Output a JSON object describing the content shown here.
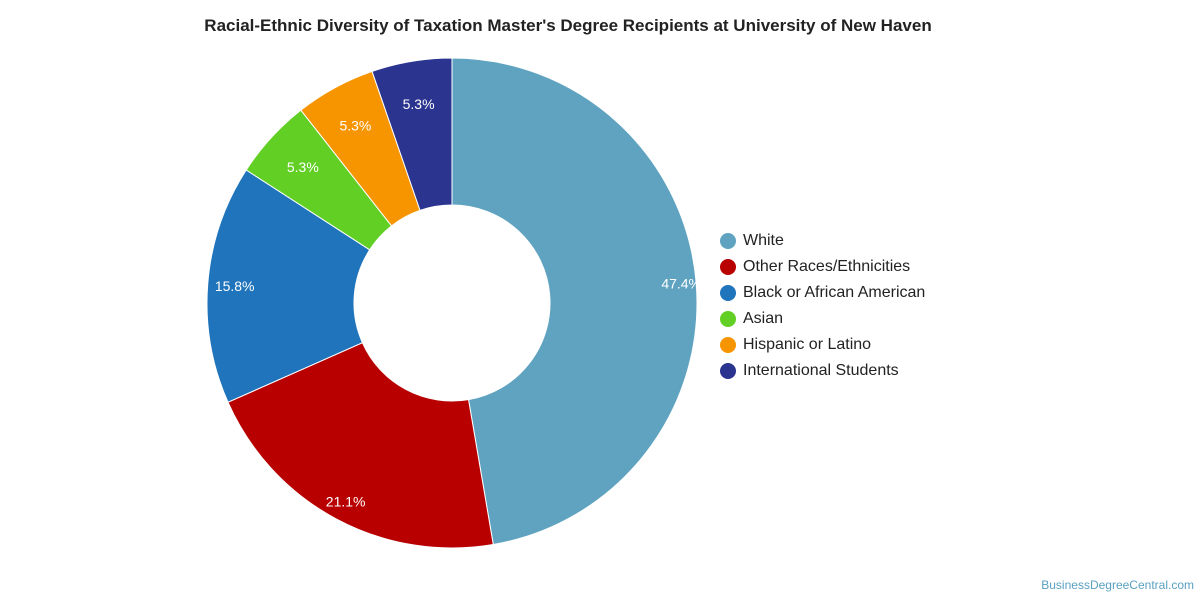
{
  "chart_data": {
    "type": "pie",
    "title": "Racial-Ethnic Diversity of Taxation Master's Degree Recipients at University of New Haven",
    "categories": [
      "White",
      "Other Races/Ethnicities",
      "Black or African American",
      "Asian",
      "Hispanic or Latino",
      "International Students"
    ],
    "values": [
      47.4,
      21.1,
      15.8,
      5.3,
      5.3,
      5.3
    ],
    "labels": [
      "47.4%",
      "21.1%",
      "15.8%",
      "5.3%",
      "5.3%",
      "5.3%"
    ],
    "colors": [
      "#5fa3c0",
      "#b80000",
      "#1f74bb",
      "#62cf25",
      "#f79500",
      "#2b3590"
    ],
    "donut": true,
    "legend_position": "right"
  },
  "watermark": "BusinessDegreeCentral.com"
}
